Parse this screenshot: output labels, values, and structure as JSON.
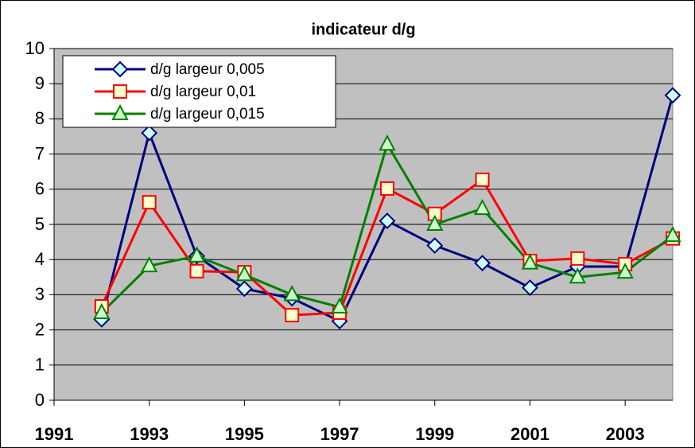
{
  "chart_data": {
    "type": "line",
    "title": "indicateur d/g",
    "x": [
      1992,
      1993,
      1994,
      1995,
      1996,
      1997,
      1998,
      1999,
      2000,
      2001,
      2002,
      2003,
      2004
    ],
    "xlim": [
      1991,
      2004
    ],
    "xticks": [
      1991,
      1993,
      1995,
      1997,
      1999,
      2001,
      2003
    ],
    "ylim": [
      0,
      10
    ],
    "yticks": [
      0,
      1,
      2,
      3,
      4,
      5,
      6,
      7,
      8,
      9,
      10
    ],
    "grid": true,
    "plot_background": "#c0c0c0",
    "legend": "upper-left",
    "series": [
      {
        "name": "d/g largeur 0,005",
        "color": "#000080",
        "marker": "diamond",
        "marker_fill": "#ccffff",
        "values": [
          2.3,
          7.6,
          4.1,
          3.17,
          2.9,
          2.25,
          5.1,
          4.4,
          3.9,
          3.2,
          3.8,
          3.8,
          8.67
        ]
      },
      {
        "name": "d/g largeur 0,01",
        "color": "#ff0000",
        "marker": "square",
        "marker_fill": "#ffffcc",
        "values": [
          2.67,
          5.63,
          3.67,
          3.64,
          2.42,
          2.49,
          6.02,
          5.3,
          6.27,
          3.96,
          4.03,
          3.87,
          4.6
        ]
      },
      {
        "name": "d/g largeur 0,015",
        "color": "#008000",
        "marker": "triangle",
        "marker_fill": "#ccffcc",
        "values": [
          2.49,
          3.82,
          4.1,
          3.57,
          3.0,
          2.65,
          7.28,
          5.0,
          5.45,
          3.9,
          3.5,
          3.64,
          4.68
        ]
      }
    ]
  }
}
